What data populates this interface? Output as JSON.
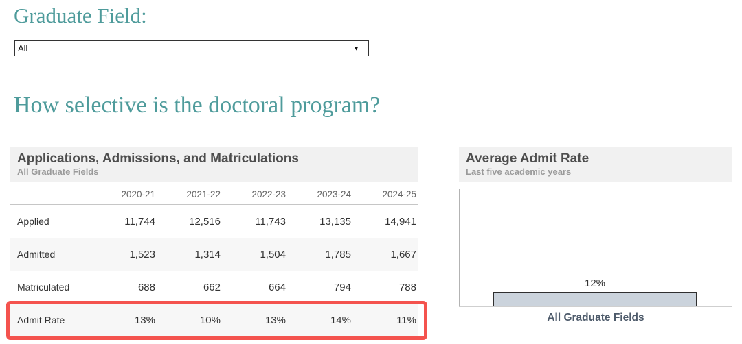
{
  "colors": {
    "accent_teal": "#4E9B9B",
    "highlight_red": "#F4534E",
    "bar_fill": "#CBD3DC",
    "bar_border": "#2F2F2F"
  },
  "filter": {
    "label": "Graduate Field:",
    "selected_value": "All",
    "dropdown_icon": "▼"
  },
  "heading": "How selective is the doctoral program?",
  "table": {
    "title": "Applications, Admissions, and Matriculations",
    "subtitle": "All Graduate Fields",
    "columns": [
      "2020-21",
      "2021-22",
      "2022-23",
      "2023-24",
      "2024-25"
    ],
    "rows": [
      {
        "label": "Applied",
        "values": [
          "11,744",
          "12,516",
          "11,743",
          "13,135",
          "14,941"
        ]
      },
      {
        "label": "Admitted",
        "values": [
          "1,523",
          "1,314",
          "1,504",
          "1,785",
          "1,667"
        ]
      },
      {
        "label": "Matriculated",
        "values": [
          "688",
          "662",
          "664",
          "794",
          "788"
        ]
      },
      {
        "label": "Admit Rate",
        "values": [
          "13%",
          "10%",
          "13%",
          "14%",
          "11%"
        ]
      }
    ]
  },
  "chart": {
    "title": "Average Admit Rate",
    "subtitle": "Last five academic years",
    "bar_value_label": "12%",
    "category_label": "All Graduate Fields"
  },
  "chart_data": {
    "type": "bar",
    "title": "Average Admit Rate",
    "subtitle": "Last five academic years",
    "categories": [
      "All Graduate Fields"
    ],
    "values": [
      12
    ],
    "unit": "%",
    "data_labels": [
      "12%"
    ],
    "ylim": [
      0,
      100
    ],
    "grid": false,
    "legend": false,
    "bar_color": "#CBD3DC"
  }
}
